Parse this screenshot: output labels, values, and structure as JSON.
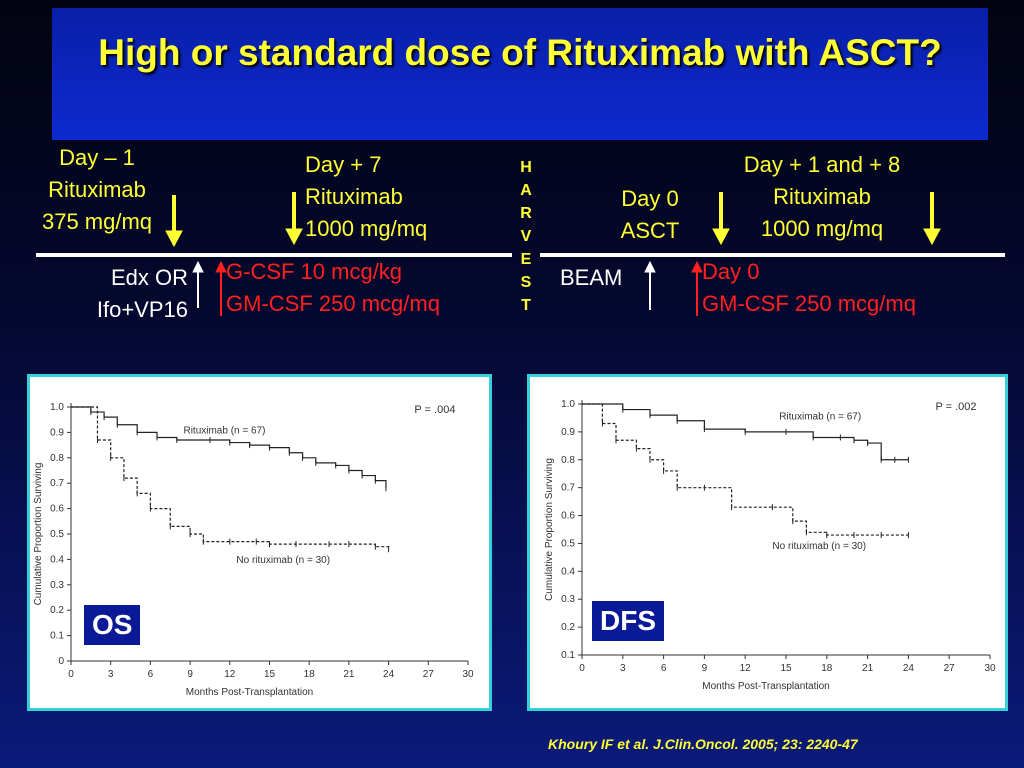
{
  "title": "High or standard dose of Rituximab with ASCT?",
  "timeline": {
    "left": {
      "day_minus1": [
        "Day – 1",
        "Rituximab",
        "375 mg/mq"
      ],
      "day_plus7": [
        "Day + 7",
        "Rituximab",
        "1000 mg/mq"
      ],
      "chemo": [
        "Edx OR",
        "Ifo+VP16"
      ],
      "growth_factors": [
        "G-CSF 10 mcg/kg",
        "GM-CSF 250 mcg/mq"
      ]
    },
    "harvest_letters": [
      "H",
      "A",
      "R",
      "V",
      "E",
      "S",
      "T"
    ],
    "right": {
      "day0_asct": [
        "Day 0",
        "ASCT"
      ],
      "day_plus1_8": [
        "Day + 1 and + 8",
        "Rituximab",
        "1000 mg/mq"
      ],
      "conditioning": "BEAM",
      "growth_factors": [
        "Day 0",
        "GM-CSF 250 mcg/mq"
      ]
    }
  },
  "colors": {
    "title_yellow": "#ffff33",
    "red_text": "#ff2020",
    "panel_border": "#35d0d8",
    "badge_bg": "#0a1a96"
  },
  "citation": "Khoury IF et al. J.Clin.Oncol. 2005; 23: 2240-47",
  "chart_data": [
    {
      "type": "line",
      "badge": "OS",
      "ylabel": "Cumulative Proportion Surviving",
      "xlabel": "Months Post-Transplantation",
      "xlim": [
        0,
        30
      ],
      "ylim": [
        0,
        1.0
      ],
      "xticks": [
        0,
        3,
        6,
        9,
        12,
        15,
        18,
        21,
        24,
        27,
        30
      ],
      "yticks": [
        0,
        0.1,
        0.2,
        0.3,
        0.4,
        0.5,
        0.6,
        0.7,
        0.8,
        0.9,
        1.0
      ],
      "ytick_labels": [
        "0",
        "0.1",
        "0.2",
        "0.3",
        "0.4",
        "0.5",
        "0.6",
        "0.7",
        "0.8",
        "0.9",
        "1.0"
      ],
      "pvalue": "P = .004",
      "series": [
        {
          "name": "Rituximab (n = 67)",
          "style": "solid",
          "x": [
            0,
            1.5,
            2.5,
            3.5,
            5,
            6.5,
            8,
            10.5,
            12,
            13.5,
            15,
            16.5,
            17.5,
            18.5,
            20,
            21,
            22,
            23,
            23.8
          ],
          "y": [
            1.0,
            0.98,
            0.96,
            0.93,
            0.9,
            0.88,
            0.87,
            0.87,
            0.86,
            0.85,
            0.84,
            0.82,
            0.8,
            0.78,
            0.77,
            0.75,
            0.73,
            0.71,
            0.68
          ]
        },
        {
          "name": "No rituximab (n = 30)",
          "style": "dashed",
          "x": [
            0,
            2,
            3,
            4,
            5,
            6,
            7.5,
            9,
            10,
            12,
            14,
            15,
            17,
            19.5,
            21,
            23,
            24
          ],
          "y": [
            1.0,
            0.87,
            0.8,
            0.72,
            0.66,
            0.6,
            0.53,
            0.5,
            0.47,
            0.47,
            0.47,
            0.46,
            0.46,
            0.46,
            0.46,
            0.45,
            0.44
          ]
        }
      ]
    },
    {
      "type": "line",
      "badge": "DFS",
      "ylabel": "Cumulative Proportion Surviving",
      "xlabel": "Months Post-Transplantation",
      "xlim": [
        0,
        30
      ],
      "ylim": [
        0.1,
        1.0
      ],
      "xticks": [
        0,
        3,
        6,
        9,
        12,
        15,
        18,
        21,
        24,
        27,
        30
      ],
      "yticks": [
        0.1,
        0.2,
        0.3,
        0.4,
        0.5,
        0.6,
        0.7,
        0.8,
        0.9,
        1.0
      ],
      "ytick_labels": [
        "0.1",
        "0.2",
        "0.3",
        "0.4",
        "0.5",
        "0.6",
        "0.7",
        "0.8",
        "0.9",
        "1.0"
      ],
      "pvalue": "P = .002",
      "series": [
        {
          "name": "Rituximab (n = 67)",
          "style": "solid",
          "x": [
            0,
            3,
            5,
            7,
            9,
            12,
            15,
            17,
            19,
            20,
            21,
            22,
            23,
            24
          ],
          "y": [
            1.0,
            0.98,
            0.96,
            0.94,
            0.91,
            0.9,
            0.9,
            0.88,
            0.88,
            0.87,
            0.86,
            0.8,
            0.8,
            0.8
          ]
        },
        {
          "name": "No rituximab (n = 30)",
          "style": "dashed",
          "x": [
            0,
            1.5,
            2.5,
            4,
            5,
            6,
            7,
            9,
            11,
            14,
            15.5,
            16.5,
            18,
            20,
            22,
            24
          ],
          "y": [
            1.0,
            0.93,
            0.87,
            0.84,
            0.8,
            0.76,
            0.7,
            0.7,
            0.63,
            0.63,
            0.58,
            0.54,
            0.53,
            0.53,
            0.53,
            0.53
          ]
        }
      ]
    }
  ]
}
